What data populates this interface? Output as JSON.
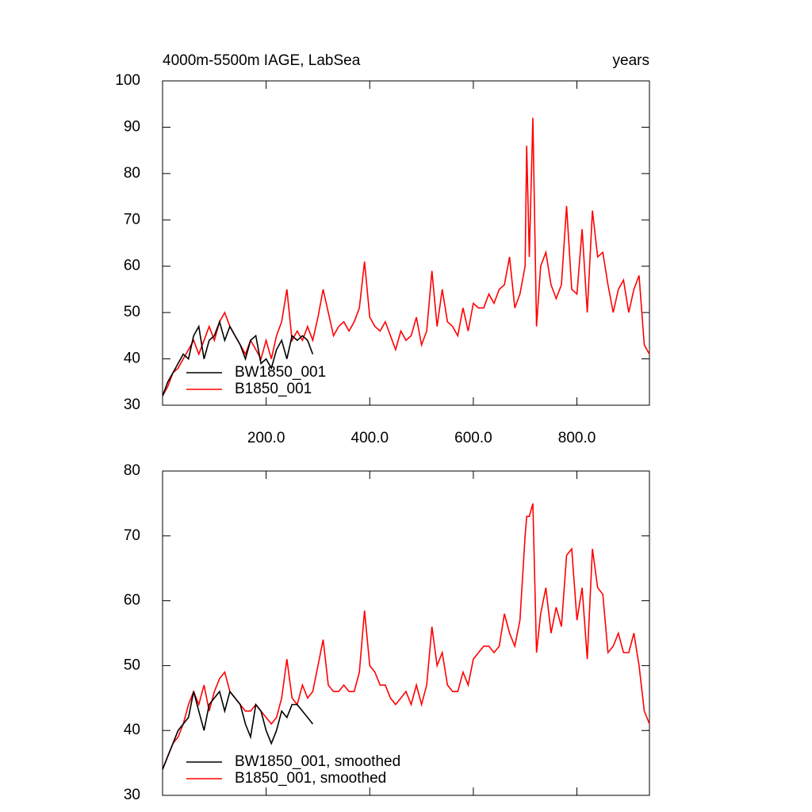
{
  "chart_data": [
    {
      "type": "line",
      "title": "4000m-5500m IAGE, LabSea",
      "right_label": "years",
      "x": [
        0,
        10,
        20,
        30,
        40,
        50,
        60,
        70,
        80,
        90,
        100,
        110,
        120,
        130,
        140,
        150,
        160,
        170,
        180,
        190,
        200,
        210,
        220,
        230,
        240,
        250,
        260,
        270,
        280,
        290,
        300,
        310,
        320,
        330,
        340,
        350,
        360,
        370,
        380,
        390,
        400,
        410,
        420,
        430,
        440,
        450,
        460,
        470,
        480,
        490,
        500,
        510,
        520,
        530,
        540,
        550,
        560,
        570,
        580,
        590,
        600,
        610,
        620,
        630,
        640,
        650,
        660,
        670,
        680,
        690,
        700,
        703,
        708,
        715,
        722,
        730,
        740,
        750,
        760,
        770,
        780,
        790,
        800,
        810,
        820,
        830,
        840,
        850,
        860,
        870,
        880,
        890,
        900,
        910,
        920,
        930,
        940
      ],
      "xlim": [
        0,
        940
      ],
      "xticks": [
        {
          "value": 200,
          "label": "200.0"
        },
        {
          "value": 400,
          "label": "400.0"
        },
        {
          "value": 600,
          "label": "600.0"
        },
        {
          "value": 800,
          "label": "800.0"
        }
      ],
      "ylim": [
        30,
        100
      ],
      "yticks": [
        30,
        40,
        50,
        60,
        70,
        80,
        90,
        100
      ],
      "series": [
        {
          "name": "BW1850_001",
          "color": "#000000",
          "values": [
            32,
            35,
            37,
            39,
            41,
            40,
            45,
            47,
            40,
            44,
            45,
            48,
            44,
            47,
            45,
            43,
            40,
            44,
            45,
            39,
            40,
            38,
            42,
            44,
            40,
            45,
            44,
            45,
            44,
            41,
            null,
            null,
            null,
            null,
            null,
            null,
            null,
            null,
            null,
            null,
            null,
            null,
            null,
            null,
            null,
            null,
            null,
            null,
            null,
            null,
            null,
            null,
            null,
            null,
            null,
            null,
            null,
            null,
            null,
            null,
            null,
            null,
            null,
            null,
            null,
            null,
            null,
            null,
            null,
            null,
            null,
            null,
            null,
            null,
            null,
            null,
            null,
            null,
            null,
            null,
            null,
            null,
            null,
            null,
            null,
            null,
            null,
            null,
            null,
            null,
            null,
            null,
            null,
            null,
            null,
            null,
            null
          ]
        },
        {
          "name": "B1850_001",
          "color": "#ff0000",
          "values": [
            32,
            34,
            37,
            38,
            40,
            42,
            44,
            41,
            44,
            47,
            44,
            48,
            50,
            47,
            45,
            43,
            41,
            44,
            42,
            40,
            44,
            40,
            45,
            48,
            55,
            44,
            46,
            44,
            47,
            44,
            49,
            55,
            50,
            45,
            47,
            48,
            46,
            48,
            51,
            61,
            49,
            47,
            46,
            48,
            45,
            42,
            46,
            44,
            45,
            49,
            43,
            46,
            59,
            47,
            55,
            48,
            47,
            45,
            51,
            46,
            52,
            51,
            51,
            54,
            52,
            55,
            56,
            62,
            51,
            54,
            60,
            86,
            62,
            92,
            47,
            60,
            63,
            56,
            53,
            56,
            73,
            55,
            54,
            68,
            50,
            72,
            62,
            63,
            56,
            50,
            55,
            57,
            50,
            55,
            58,
            43,
            41
          ]
        }
      ]
    },
    {
      "type": "line",
      "x": [
        0,
        10,
        20,
        30,
        40,
        50,
        60,
        70,
        80,
        90,
        100,
        110,
        120,
        130,
        140,
        150,
        160,
        170,
        180,
        190,
        200,
        210,
        220,
        230,
        240,
        250,
        260,
        270,
        280,
        290,
        300,
        310,
        320,
        330,
        340,
        350,
        360,
        370,
        380,
        390,
        400,
        410,
        420,
        430,
        440,
        450,
        460,
        470,
        480,
        490,
        500,
        510,
        520,
        530,
        540,
        550,
        560,
        570,
        580,
        590,
        600,
        610,
        620,
        630,
        640,
        650,
        660,
        670,
        680,
        690,
        700,
        703,
        708,
        715,
        722,
        730,
        740,
        750,
        760,
        770,
        780,
        790,
        800,
        810,
        820,
        830,
        840,
        850,
        860,
        870,
        880,
        890,
        900,
        910,
        920,
        930,
        940
      ],
      "xlim": [
        0,
        940
      ],
      "ylim": [
        30,
        80
      ],
      "yticks": [
        30,
        40,
        50,
        60,
        70,
        80
      ],
      "series": [
        {
          "name": "BW1850_001, smoothed",
          "color": "#000000",
          "values": [
            34,
            36,
            38,
            40,
            41,
            42,
            46,
            43,
            40,
            44,
            45,
            46,
            43,
            46,
            45,
            44,
            41,
            39,
            44,
            43,
            40,
            38,
            40,
            43,
            42,
            44,
            44,
            43,
            42,
            41,
            null,
            null,
            null,
            null,
            null,
            null,
            null,
            null,
            null,
            null,
            null,
            null,
            null,
            null,
            null,
            null,
            null,
            null,
            null,
            null,
            null,
            null,
            null,
            null,
            null,
            null,
            null,
            null,
            null,
            null,
            null,
            null,
            null,
            null,
            null,
            null,
            null,
            null,
            null,
            null,
            null,
            null,
            null,
            null,
            null,
            null,
            null,
            null,
            null,
            null,
            null,
            null,
            null,
            null,
            null,
            null,
            null,
            null,
            null,
            null,
            null,
            null,
            null,
            null,
            null,
            null,
            null
          ]
        },
        {
          "name": "B1850_001, smoothed",
          "color": "#ff0000",
          "values": [
            34,
            36,
            38,
            39,
            41,
            44,
            46,
            44,
            47,
            43,
            46,
            48,
            49,
            46,
            45,
            44,
            43,
            43,
            44,
            43,
            42,
            41,
            42,
            45,
            51,
            45,
            44,
            47,
            45,
            46,
            50,
            54,
            47,
            46,
            46,
            47,
            46,
            46,
            49,
            58.5,
            50,
            49,
            47,
            47,
            45,
            44,
            45,
            46,
            44,
            47,
            44,
            47,
            56,
            50,
            52,
            47,
            46,
            46,
            49,
            47,
            51,
            52,
            53,
            53,
            52,
            53,
            58,
            55,
            53,
            57,
            70,
            73,
            73,
            75,
            52,
            58,
            62,
            55,
            59,
            56,
            67,
            68,
            57,
            62,
            51,
            68,
            62,
            61,
            52,
            53,
            55,
            52,
            52,
            55,
            50,
            43,
            41
          ]
        }
      ]
    }
  ]
}
